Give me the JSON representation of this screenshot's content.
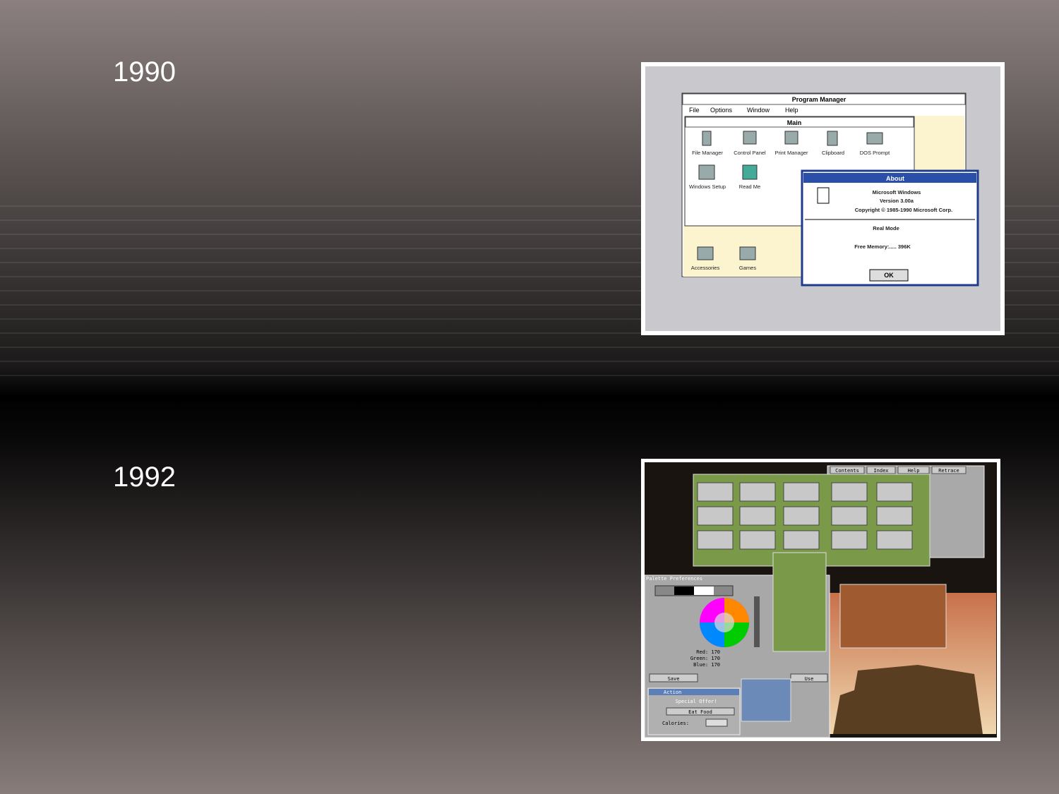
{
  "items": [
    {
      "label": "1990",
      "screenshot": {
        "window_title": "Program Manager",
        "menu": [
          "File",
          "Options",
          "Window",
          "Help"
        ],
        "group_title": "Main",
        "icons": [
          "File Manager",
          "Control Panel",
          "Print Manager",
          "Clipboard",
          "DOS Prompt",
          "Windows Setup",
          "Read Me"
        ],
        "groups": [
          "Accessories",
          "Games"
        ],
        "dialog": {
          "title": "About",
          "lines": [
            "Microsoft Windows",
            "Version 3.00a",
            "Copyright © 1985-1990 Microsoft Corp."
          ],
          "mode": "Real Mode",
          "memory": "Free Memory:..... 396K",
          "button": "OK"
        }
      }
    },
    {
      "label": "1992",
      "screenshot": {
        "buttons": [
          "Contents",
          "Index",
          "Help",
          "Retrace"
        ],
        "palette_title": "Palette Preferences",
        "sliders": [
          "Red: 170",
          "Green: 170",
          "Blue: 170"
        ],
        "actions": [
          "Save",
          "Use"
        ],
        "panel": [
          "Action",
          "Special Offer!",
          "Eat Food",
          "Calories:"
        ]
      }
    }
  ]
}
